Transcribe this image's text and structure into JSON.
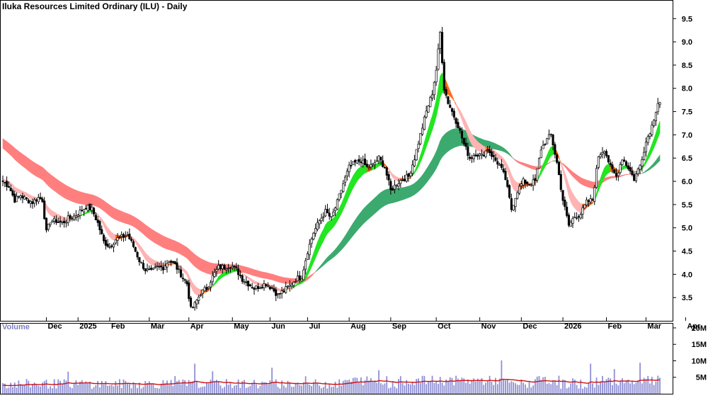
{
  "chart_data": {
    "type": "candlestick",
    "title": "Iluka Resources Limited Ordinary (ILU) - Daily",
    "price_axis": {
      "ticks": [
        "3.5",
        "4.0",
        "4.5",
        "5.0",
        "5.5",
        "6.0",
        "6.5",
        "7.0",
        "7.5",
        "8.0",
        "8.5",
        "9.0",
        "9.5"
      ],
      "range": [
        3.0,
        9.9
      ],
      "side": "right"
    },
    "x_axis": {
      "labels": [
        "Dec",
        "2025",
        "Feb",
        "Mar",
        "Apr",
        "May",
        "Jun",
        "Jul",
        "Aug",
        "Sep",
        "Oct",
        "Nov",
        "Dec",
        "2026",
        "Feb",
        "Mar",
        "Apr"
      ],
      "day_range": [
        0,
        332
      ]
    },
    "month_starts": [
      22,
      38,
      54,
      74,
      94,
      116,
      135,
      154,
      175,
      196,
      219,
      241,
      262,
      283,
      305,
      325,
      345
    ],
    "price_points": [
      [
        0,
        6.0
      ],
      [
        3,
        5.9
      ],
      [
        6,
        5.6
      ],
      [
        9,
        5.7
      ],
      [
        12,
        5.6
      ],
      [
        15,
        5.55
      ],
      [
        18,
        5.65
      ],
      [
        20,
        5.6
      ],
      [
        22,
        4.9
      ],
      [
        24,
        5.15
      ],
      [
        27,
        5.15
      ],
      [
        30,
        5.1
      ],
      [
        33,
        5.2
      ],
      [
        36,
        5.25
      ],
      [
        39,
        5.35
      ],
      [
        42,
        5.45
      ],
      [
        45,
        5.4
      ],
      [
        48,
        5.1
      ],
      [
        51,
        4.7
      ],
      [
        54,
        4.6
      ],
      [
        57,
        4.75
      ],
      [
        60,
        4.8
      ],
      [
        63,
        4.85
      ],
      [
        66,
        4.6
      ],
      [
        69,
        4.3
      ],
      [
        72,
        4.1
      ],
      [
        75,
        4.05
      ],
      [
        78,
        4.15
      ],
      [
        81,
        4.15
      ],
      [
        84,
        4.3
      ],
      [
        87,
        4.2
      ],
      [
        90,
        4.0
      ],
      [
        93,
        3.8
      ],
      [
        95,
        3.25
      ],
      [
        97,
        3.35
      ],
      [
        100,
        3.6
      ],
      [
        103,
        3.7
      ],
      [
        106,
        3.95
      ],
      [
        109,
        4.15
      ],
      [
        112,
        4.15
      ],
      [
        115,
        4.2
      ],
      [
        118,
        4.1
      ],
      [
        121,
        3.9
      ],
      [
        124,
        3.8
      ],
      [
        127,
        3.7
      ],
      [
        130,
        3.75
      ],
      [
        133,
        3.8
      ],
      [
        136,
        3.7
      ],
      [
        139,
        3.55
      ],
      [
        142,
        3.65
      ],
      [
        145,
        3.75
      ],
      [
        148,
        3.9
      ],
      [
        151,
        3.95
      ],
      [
        154,
        4.5
      ],
      [
        157,
        4.9
      ],
      [
        160,
        5.15
      ],
      [
        163,
        5.35
      ],
      [
        166,
        5.2
      ],
      [
        169,
        5.55
      ],
      [
        172,
        5.95
      ],
      [
        175,
        6.3
      ],
      [
        178,
        6.4
      ],
      [
        181,
        6.45
      ],
      [
        184,
        6.3
      ],
      [
        187,
        6.35
      ],
      [
        190,
        6.5
      ],
      [
        193,
        6.3
      ],
      [
        196,
        5.8
      ],
      [
        199,
        5.95
      ],
      [
        202,
        6.05
      ],
      [
        205,
        6.1
      ],
      [
        208,
        6.5
      ],
      [
        211,
        7.0
      ],
      [
        214,
        7.5
      ],
      [
        217,
        7.9
      ],
      [
        219,
        8.4
      ],
      [
        221,
        9.2
      ],
      [
        223,
        8.0
      ],
      [
        225,
        7.7
      ],
      [
        227,
        7.5
      ],
      [
        230,
        7.2
      ],
      [
        233,
        6.8
      ],
      [
        236,
        6.5
      ],
      [
        239,
        6.6
      ],
      [
        242,
        6.55
      ],
      [
        245,
        6.7
      ],
      [
        248,
        6.5
      ],
      [
        251,
        6.35
      ],
      [
        254,
        6.05
      ],
      [
        257,
        5.4
      ],
      [
        260,
        5.8
      ],
      [
        263,
        6.0
      ],
      [
        266,
        5.95
      ],
      [
        269,
        6.0
      ],
      [
        272,
        6.7
      ],
      [
        275,
        6.9
      ],
      [
        277,
        7.0
      ],
      [
        280,
        6.4
      ],
      [
        283,
        5.6
      ],
      [
        286,
        5.05
      ],
      [
        289,
        5.25
      ],
      [
        292,
        5.3
      ],
      [
        295,
        5.55
      ],
      [
        298,
        5.6
      ],
      [
        301,
        6.55
      ],
      [
        304,
        6.7
      ],
      [
        307,
        6.3
      ],
      [
        310,
        6.1
      ],
      [
        313,
        6.5
      ],
      [
        316,
        6.3
      ],
      [
        319,
        6.05
      ],
      [
        322,
        6.35
      ],
      [
        325,
        6.85
      ],
      [
        328,
        7.2
      ],
      [
        331,
        7.7
      ]
    ],
    "volume_axis": {
      "ticks": [
        "5M",
        "10M",
        "15M",
        "20M"
      ],
      "range": [
        0,
        21.5
      ],
      "label": "Volume"
    }
  }
}
